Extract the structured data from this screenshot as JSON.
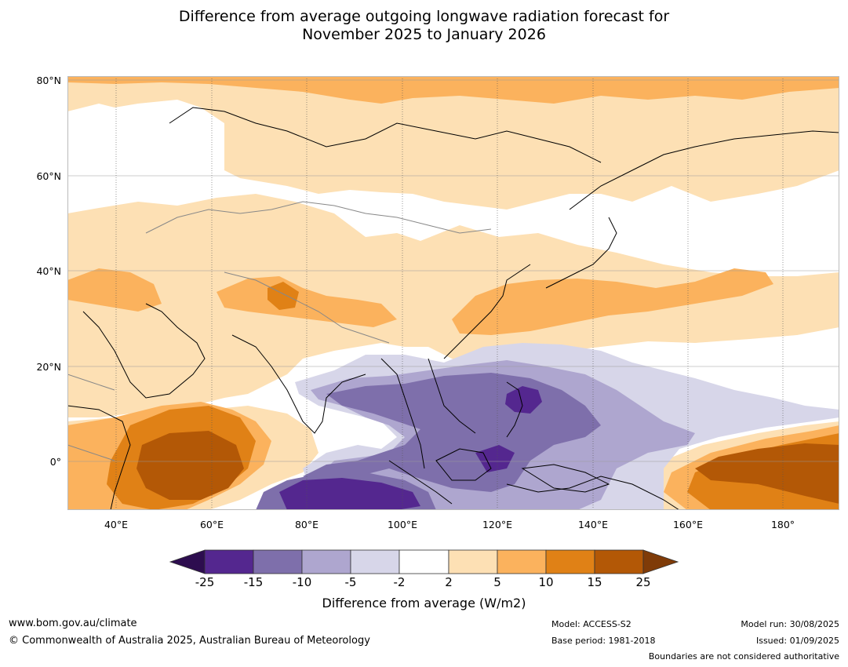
{
  "title_line1": "Difference from average outgoing longwave radiation forecast for",
  "title_line2": "November 2025 to January 2026",
  "lat_labels": [
    "80°N",
    "60°N",
    "40°N",
    "20°N",
    "0°"
  ],
  "lon_labels": [
    "40°E",
    "60°E",
    "80°E",
    "100°E",
    "120°E",
    "140°E",
    "160°E",
    "180°"
  ],
  "colors": {
    "c_lt_m25": "#2d0d4f",
    "c_m25_m15": "#54278f",
    "c_m15_m10": "#7e6fab",
    "c_m10_m5": "#aea6cf",
    "c_m5_m2": "#d7d6e9",
    "c_m2_2": "#ffffff",
    "c_2_5": "#fde0b4",
    "c_5_10": "#fbb25d",
    "c_10_15": "#e08116",
    "c_15_25": "#b35806",
    "c_gt_25": "#7f3b08"
  },
  "legend": {
    "ticks": [
      "-25",
      "-15",
      "-10",
      "-5",
      "-2",
      "2",
      "5",
      "10",
      "15",
      "25"
    ],
    "title": "Difference from average (W/m2)"
  },
  "footer": {
    "website": "www.bom.gov.au/climate",
    "copyright": "© Commonwealth of Australia 2025, Australian Bureau of Meteorology",
    "model": "Model: ACCESS-S2",
    "base_period": "Base period: 1981-2018",
    "model_run": "Model run: 30/08/2025",
    "issued": "Issued: 01/09/2025",
    "boundaries": "Boundaries are not considered authoritative"
  }
}
